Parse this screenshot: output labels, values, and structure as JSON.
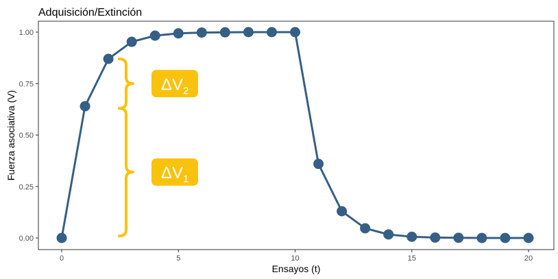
{
  "chart_data": {
    "type": "line",
    "title": "Adquisición/Extinción",
    "xlabel": "Ensayos (t)",
    "ylabel": "Fuerza asociativa (V)",
    "xlim": [
      0,
      20
    ],
    "ylim": [
      0,
      1
    ],
    "x_ticks": [
      0,
      5,
      10,
      15,
      20
    ],
    "x_tick_labels": [
      "0",
      "5",
      "10",
      "15",
      "20"
    ],
    "y_ticks": [
      0,
      0.25,
      0.5,
      0.75,
      1
    ],
    "y_tick_labels": [
      "0.00",
      "0.25",
      "0.50",
      "0.75",
      "1.00"
    ],
    "grid": false,
    "series": [
      {
        "color": "#365f85",
        "x": [
          0,
          1,
          2,
          3,
          4,
          5,
          6,
          7,
          8,
          9,
          10,
          11,
          12,
          13,
          14,
          15,
          16,
          17,
          18,
          19,
          20
        ],
        "y": [
          0,
          0.64,
          0.87,
          0.953,
          0.983,
          0.994,
          0.998,
          0.999,
          1,
          1,
          1,
          0.36,
          0.13,
          0.047,
          0.017,
          0.006,
          0.002,
          0.001,
          0,
          0,
          0
        ]
      }
    ],
    "annotations": [
      {
        "label": "ΔV",
        "subscript": "2",
        "x": 2.7,
        "y_from": 0.63,
        "y_to": 0.87,
        "brace_color": "#f9c20d",
        "box_color": "#f9c20d",
        "text_color": "#ffffff"
      },
      {
        "label": "ΔV",
        "subscript": "1",
        "x": 2.7,
        "y_from": 0.01,
        "y_to": 0.63,
        "brace_color": "#f9c20d",
        "box_color": "#f9c20d",
        "text_color": "#ffffff"
      }
    ]
  }
}
